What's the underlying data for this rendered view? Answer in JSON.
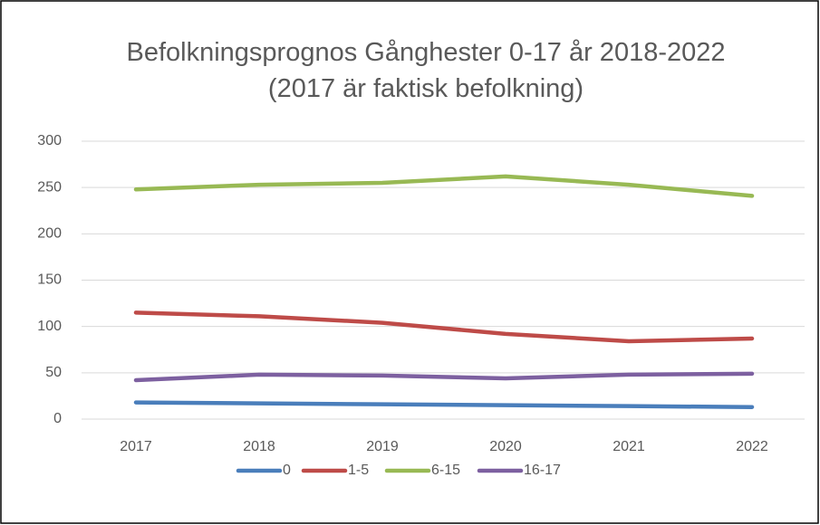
{
  "chart_data": {
    "type": "line",
    "title": "Befolkningsprognos Gånghester 0-17 år 2018-2022 (2017 är faktisk befolkning)",
    "categories": [
      "2017",
      "2018",
      "2019",
      "2020",
      "2021",
      "2022"
    ],
    "series": [
      {
        "name": "0",
        "color": "#4a7ebb",
        "values": [
          18,
          17,
          16,
          15,
          14,
          13
        ]
      },
      {
        "name": "1-5",
        "color": "#be4b48",
        "values": [
          115,
          111,
          104,
          92,
          84,
          87
        ]
      },
      {
        "name": "6-15",
        "color": "#98b954",
        "values": [
          248,
          253,
          255,
          262,
          253,
          241
        ]
      },
      {
        "name": "16-17",
        "color": "#7d60a0",
        "values": [
          42,
          48,
          47,
          44,
          48,
          49
        ]
      }
    ],
    "ylim": [
      0,
      300
    ],
    "yticks": [
      0,
      50,
      100,
      150,
      200,
      250,
      300
    ],
    "grid": true,
    "legend": "bottom"
  }
}
